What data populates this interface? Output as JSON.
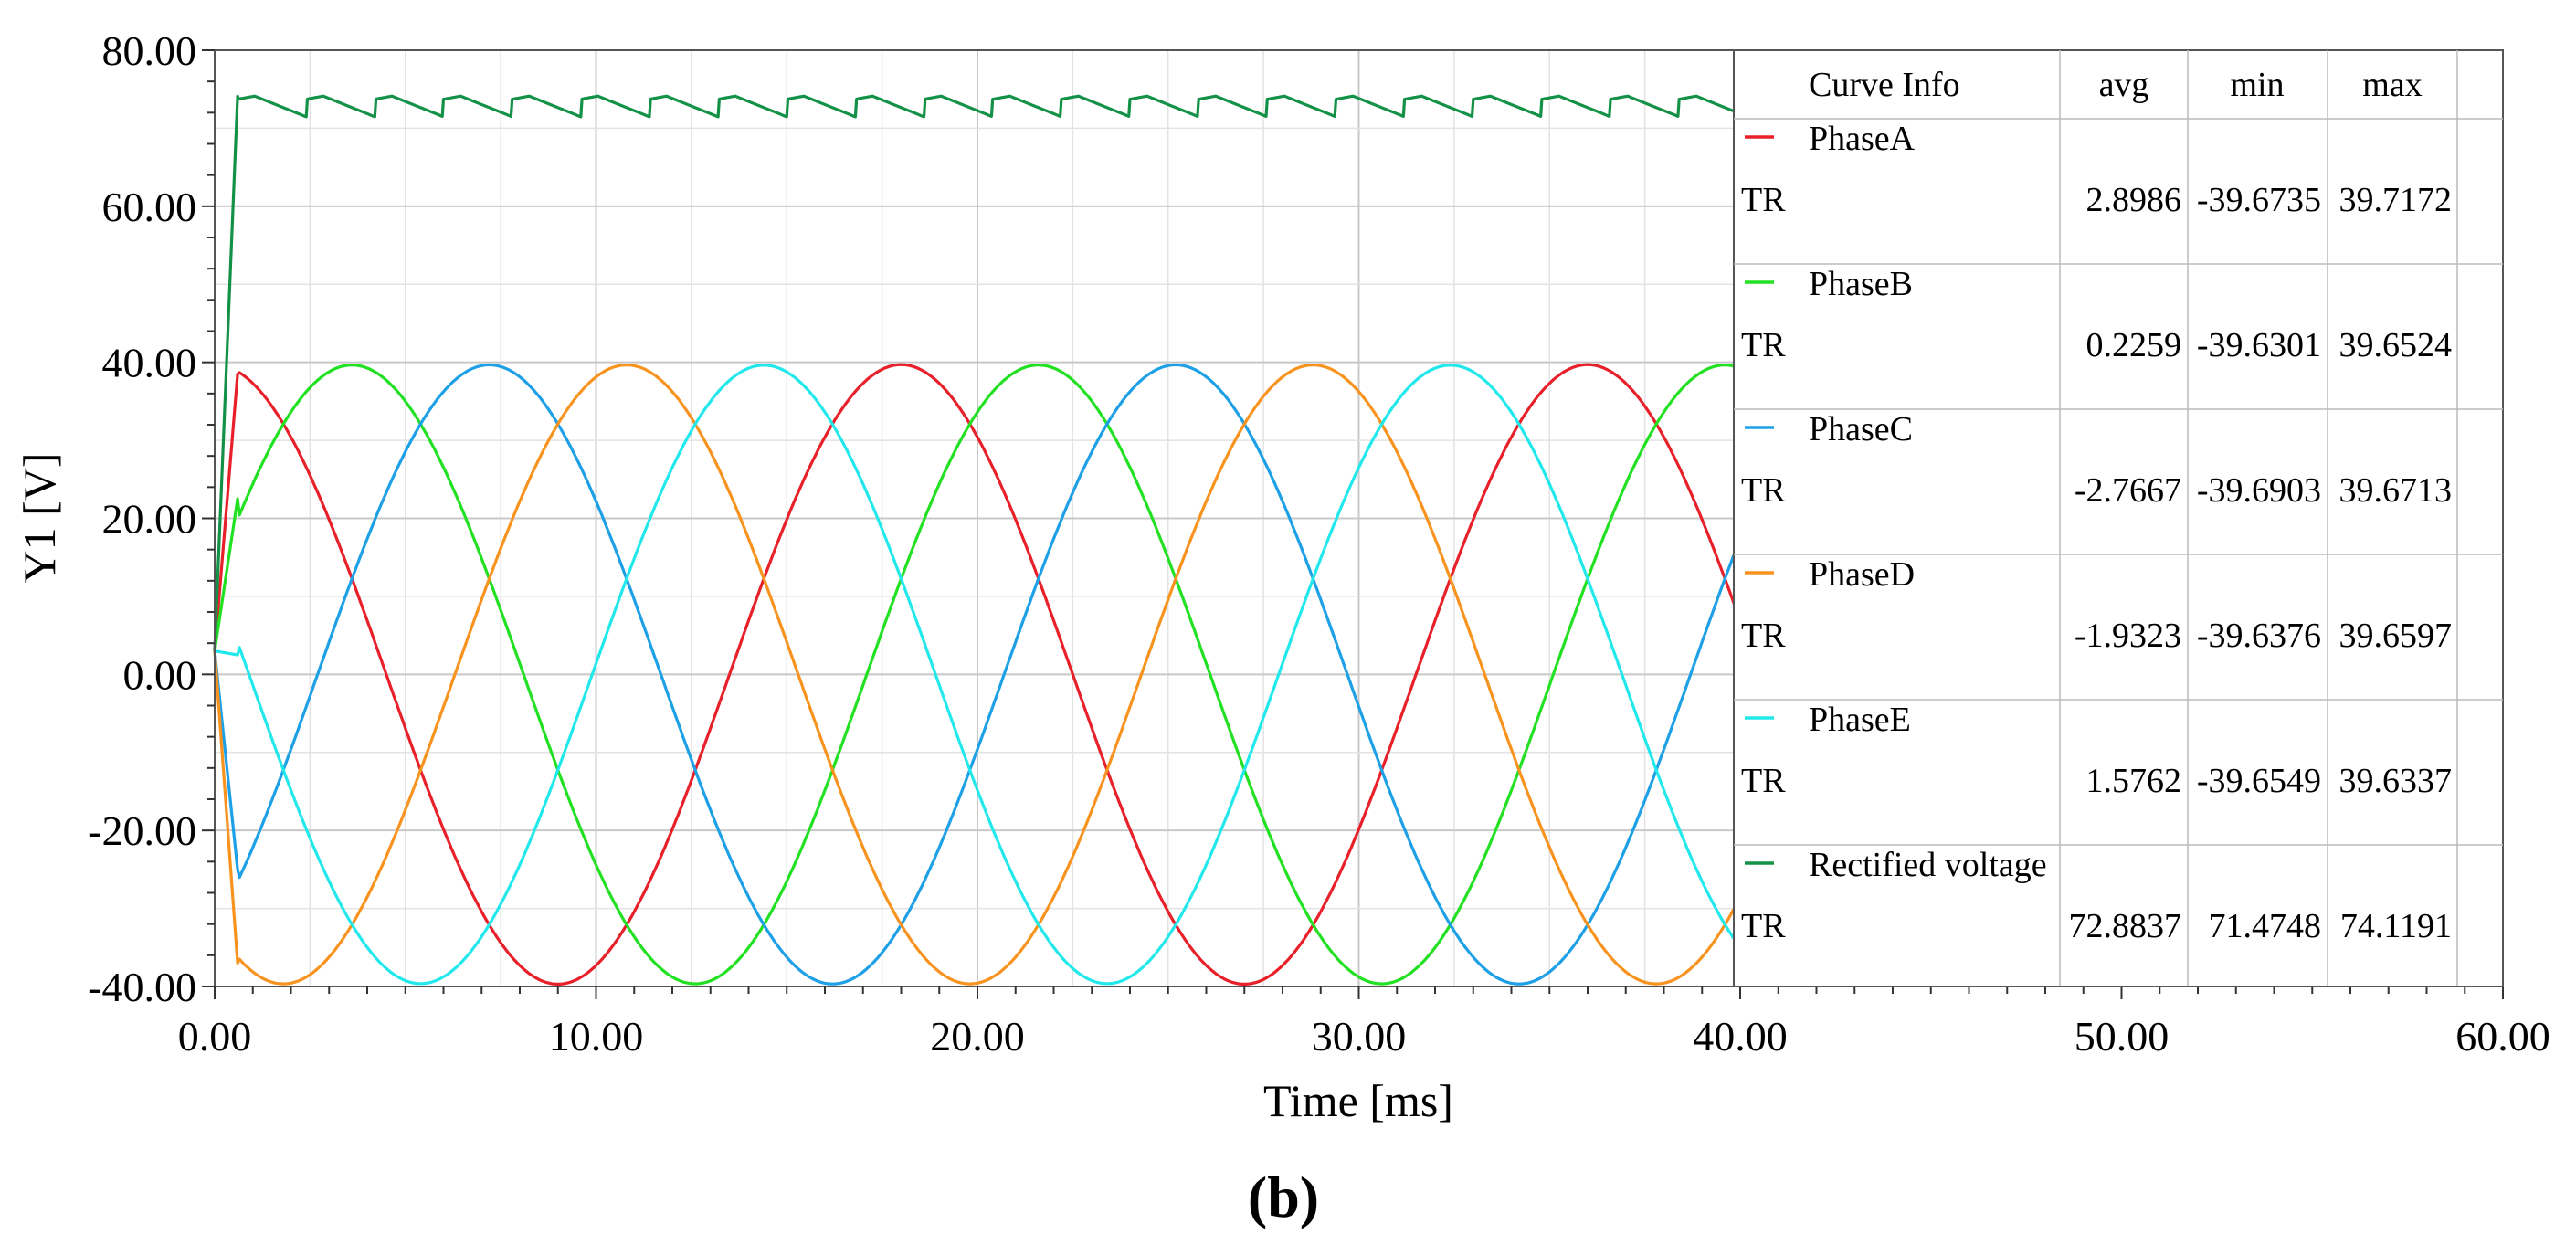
{
  "chart_data": {
    "type": "line",
    "title": "",
    "xlabel": "Time [ms]",
    "ylabel": "Y1 [V]",
    "panel_label": "(b)",
    "xlim": [
      0,
      60
    ],
    "ylim": [
      -40,
      80
    ],
    "x_ticks": [
      "0.00",
      "10.00",
      "20.00",
      "30.00",
      "40.00",
      "50.00",
      "60.00"
    ],
    "y_ticks": [
      "-40.00",
      "-20.00",
      "0.00",
      "20.00",
      "40.00",
      "60.00",
      "80.00"
    ],
    "grid": true,
    "legend": {
      "placement": "top-right",
      "headers": [
        "Curve Info",
        "avg",
        "min",
        "max"
      ],
      "entries": [
        {
          "name": "PhaseA",
          "source": "TR",
          "avg": "2.8986",
          "min": "-39.6735",
          "max": "39.7172",
          "color": "#e8202a"
        },
        {
          "name": "PhaseB",
          "source": "TR",
          "avg": "0.2259",
          "min": "-39.6301",
          "max": "39.6524",
          "color": "#22e022"
        },
        {
          "name": "PhaseC",
          "source": "TR",
          "avg": "-2.7667",
          "min": "-39.6903",
          "max": "39.6713",
          "color": "#1ea0e6"
        },
        {
          "name": "PhaseD",
          "source": "TR",
          "avg": "-1.9323",
          "min": "-39.6376",
          "max": "39.6597",
          "color": "#f7931e"
        },
        {
          "name": "PhaseE",
          "source": "TR",
          "avg": "1.5762",
          "min": "-39.6549",
          "max": "39.6337",
          "color": "#22e8ec"
        },
        {
          "name": "Rectified voltage",
          "source": "TR",
          "avg": "72.8837",
          "min": "71.4748",
          "max": "74.1191",
          "color": "#139146"
        }
      ]
    },
    "series": [
      {
        "name": "PhaseA",
        "color": "#e8202a",
        "kind": "phase",
        "amplitude": 39.7,
        "period_ms": 18.0,
        "peak_ms": 18.0,
        "startup": [
          [
            0,
            3
          ],
          [
            0.6,
            38.5
          ]
        ]
      },
      {
        "name": "PhaseB",
        "color": "#22e022",
        "kind": "phase",
        "amplitude": 39.65,
        "period_ms": 18.0,
        "peak_ms": 21.6,
        "startup": [
          [
            0,
            3
          ],
          [
            0.6,
            22.5
          ]
        ]
      },
      {
        "name": "PhaseC",
        "color": "#1ea0e6",
        "kind": "phase",
        "amplitude": 39.67,
        "period_ms": 18.0,
        "peak_ms": 25.2,
        "startup": [
          [
            0,
            3
          ],
          [
            0.6,
            -25
          ]
        ]
      },
      {
        "name": "PhaseD",
        "color": "#f7931e",
        "kind": "phase",
        "amplitude": 39.66,
        "period_ms": 18.0,
        "peak_ms": 28.8,
        "startup": [
          [
            0,
            3
          ],
          [
            0.6,
            -37
          ]
        ]
      },
      {
        "name": "PhaseE",
        "color": "#22e8ec",
        "kind": "phase",
        "amplitude": 39.63,
        "period_ms": 18.0,
        "peak_ms": 32.4,
        "startup": [
          [
            0,
            3
          ],
          [
            0.6,
            2.5
          ]
        ]
      },
      {
        "name": "Rectified voltage",
        "color": "#139146",
        "kind": "ripple",
        "min": 71.47,
        "max": 74.12,
        "ripple_period_ms": 1.8,
        "startup": [
          [
            0,
            3
          ],
          [
            0.6,
            74.1
          ]
        ]
      }
    ],
    "x_end_ms": 39.9
  }
}
